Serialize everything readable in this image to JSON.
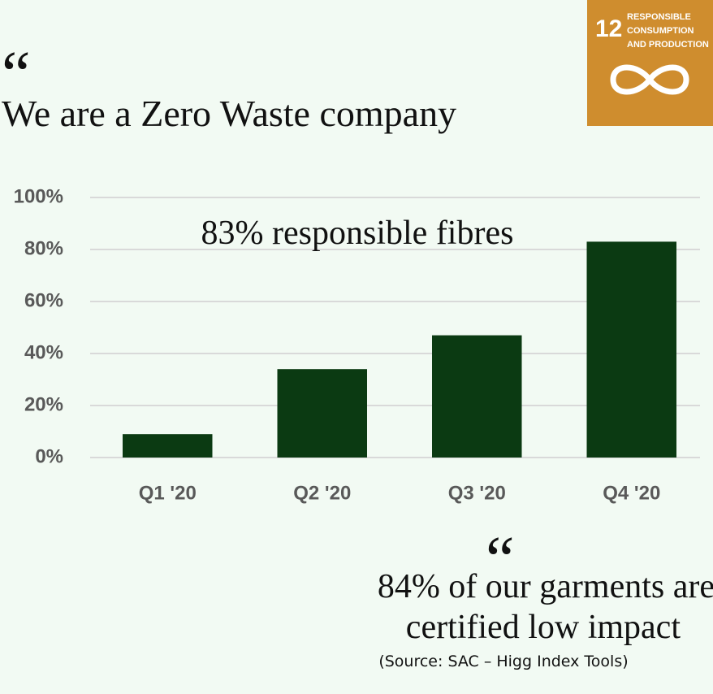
{
  "header": {
    "quote_mark": "“",
    "title": "We are a Zero Waste company"
  },
  "badge": {
    "number": "12",
    "lines": [
      "RESPONSIBLE",
      "CONSUMPTION",
      "AND PRODUCTION"
    ]
  },
  "chart_data": {
    "type": "bar",
    "annotation": "83% responsible fibres",
    "categories": [
      "Q1 '20",
      "Q2 '20",
      "Q3 '20",
      "Q4 '20"
    ],
    "values": [
      9,
      34,
      47,
      83
    ],
    "color": "#0b3a12",
    "ylim": [
      0,
      100
    ],
    "yticks": [
      {
        "value": 0,
        "label": "0%"
      },
      {
        "value": 20,
        "label": "20%"
      },
      {
        "value": 40,
        "label": "40%"
      },
      {
        "value": 60,
        "label": "60%"
      },
      {
        "value": 80,
        "label": "80%"
      },
      {
        "value": 100,
        "label": "100%"
      }
    ],
    "grid": true
  },
  "footer": {
    "quote_mark": "“",
    "lines": [
      "84% of our garments are",
      "certified low impact"
    ],
    "source": "(Source: SAC – Higg Index Tools)"
  }
}
